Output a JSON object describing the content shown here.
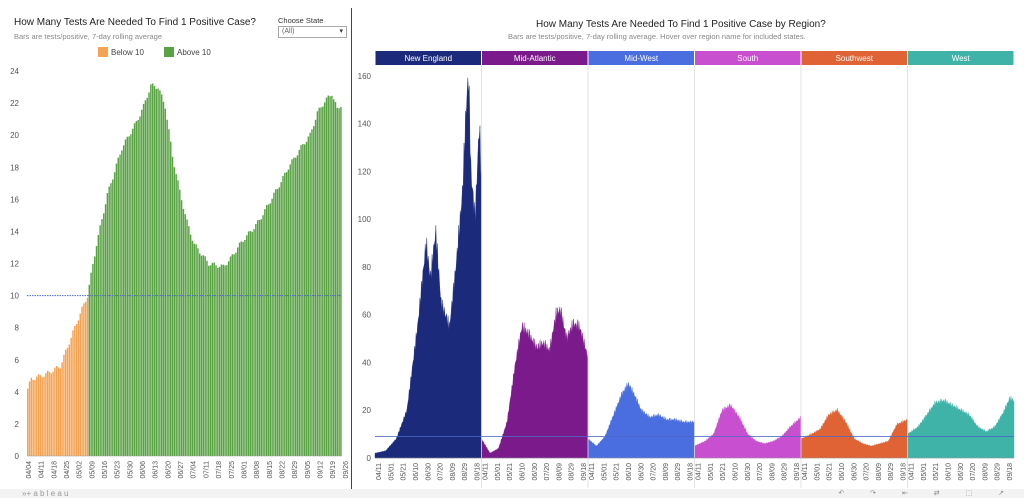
{
  "left": {
    "title": "How Many Tests Are Needed To Find 1 Positive Case?",
    "subtitle": "Bars are tests/positive, 7-day rolling average",
    "filter": {
      "label": "Choose State",
      "value": "(All)"
    },
    "legend": [
      {
        "label": "Below 10",
        "color": "#f4a352"
      },
      {
        "label": "Above 10",
        "color": "#5aa345"
      }
    ]
  },
  "right": {
    "title": "How Many Tests Are Needed To Find 1 Positive Case by Region?",
    "subtitle": "Bars are tests/positive, 7-day rolling average. Hover over region name for included states."
  },
  "footer": {
    "logo": "»+ a b l e a u",
    "icons": "↶ ↷ ⇤ ⇄ ⬚ ↗"
  },
  "chart_data": [
    {
      "type": "bar",
      "title": "How Many Tests Are Needed To Find 1 Positive Case?",
      "ylim": [
        0,
        24
      ],
      "yticks": [
        0,
        2,
        4,
        6,
        8,
        10,
        12,
        14,
        16,
        18,
        20,
        22,
        24
      ],
      "threshold": 10,
      "date_labels": [
        "04/04",
        "04/11",
        "04/18",
        "04/25",
        "05/02",
        "05/09",
        "05/16",
        "05/23",
        "05/30",
        "06/06",
        "06/13",
        "06/20",
        "06/27",
        "07/04",
        "07/11",
        "07/18",
        "07/25",
        "08/01",
        "08/08",
        "08/15",
        "08/22",
        "08/29",
        "09/05",
        "09/12",
        "09/19",
        "09/26"
      ],
      "keypoints": [
        [
          0,
          4.2
        ],
        [
          2,
          4.8
        ],
        [
          10,
          5.1
        ],
        [
          18,
          5.6
        ],
        [
          24,
          7.4
        ],
        [
          28,
          8.6
        ],
        [
          33,
          10.0
        ],
        [
          38,
          13.2
        ],
        [
          44,
          16.3
        ],
        [
          52,
          19.2
        ],
        [
          60,
          20.8
        ],
        [
          64,
          21.8
        ],
        [
          68,
          23.1
        ],
        [
          72,
          23.0
        ],
        [
          76,
          21.8
        ],
        [
          80,
          18.7
        ],
        [
          84,
          16.5
        ],
        [
          88,
          14.6
        ],
        [
          92,
          13.2
        ],
        [
          96,
          12.6
        ],
        [
          100,
          12.0
        ],
        [
          104,
          11.9
        ],
        [
          108,
          11.8
        ],
        [
          112,
          12.3
        ],
        [
          116,
          13.0
        ],
        [
          120,
          13.6
        ],
        [
          124,
          14.1
        ],
        [
          128,
          14.7
        ],
        [
          132,
          15.5
        ],
        [
          136,
          16.3
        ],
        [
          140,
          17.1
        ],
        [
          144,
          18.0
        ],
        [
          148,
          18.7
        ],
        [
          152,
          19.4
        ],
        [
          156,
          20.0
        ],
        [
          160,
          21.4
        ],
        [
          164,
          22.1
        ],
        [
          168,
          22.6
        ],
        [
          171,
          21.6
        ],
        [
          173,
          21.9
        ]
      ]
    },
    {
      "type": "area",
      "title": "How Many Tests Are Needed To Find 1 Positive Case by Region?",
      "ylim": [
        0,
        165
      ],
      "yticks": [
        0,
        20,
        40,
        60,
        80,
        100,
        120,
        140,
        160
      ],
      "reference_line": 9,
      "date_labels": [
        "04/11",
        "05/01",
        "05/21",
        "06/10",
        "06/30",
        "07/20",
        "08/09",
        "08/29",
        "09/18"
      ],
      "series": [
        {
          "name": "New England",
          "color": "#1b2a7b",
          "points": [
            [
              0,
              2
            ],
            [
              0.1,
              3
            ],
            [
              0.2,
              8
            ],
            [
              0.3,
              20
            ],
            [
              0.4,
              55
            ],
            [
              0.48,
              90
            ],
            [
              0.52,
              75
            ],
            [
              0.57,
              95
            ],
            [
              0.62,
              65
            ],
            [
              0.7,
              55
            ],
            [
              0.76,
              80
            ],
            [
              0.82,
              110
            ],
            [
              0.86,
              150
            ],
            [
              0.88,
              160
            ],
            [
              0.9,
              120
            ],
            [
              0.94,
              100
            ],
            [
              0.98,
              140
            ],
            [
              1,
              115
            ]
          ]
        },
        {
          "name": "Mid-Atlantic",
          "color": "#7b1a8b",
          "points": [
            [
              0,
              8
            ],
            [
              0.08,
              2
            ],
            [
              0.16,
              4
            ],
            [
              0.24,
              15
            ],
            [
              0.32,
              40
            ],
            [
              0.38,
              55
            ],
            [
              0.44,
              52
            ],
            [
              0.52,
              46
            ],
            [
              0.58,
              48
            ],
            [
              0.64,
              45
            ],
            [
              0.7,
              60
            ],
            [
              0.74,
              62
            ],
            [
              0.8,
              50
            ],
            [
              0.86,
              56
            ],
            [
              0.92,
              55
            ],
            [
              1,
              42
            ]
          ]
        },
        {
          "name": "Mid-West",
          "color": "#4a6ee0",
          "points": [
            [
              0,
              8
            ],
            [
              0.08,
              5
            ],
            [
              0.16,
              9
            ],
            [
              0.24,
              18
            ],
            [
              0.32,
              27
            ],
            [
              0.38,
              31
            ],
            [
              0.44,
              26
            ],
            [
              0.5,
              20
            ],
            [
              0.58,
              17
            ],
            [
              0.66,
              18
            ],
            [
              0.74,
              16
            ],
            [
              0.82,
              16
            ],
            [
              0.9,
              15
            ],
            [
              1,
              15
            ]
          ]
        },
        {
          "name": "South",
          "color": "#c94fd1",
          "points": [
            [
              0,
              5
            ],
            [
              0.1,
              7
            ],
            [
              0.18,
              10
            ],
            [
              0.26,
              20
            ],
            [
              0.34,
              22
            ],
            [
              0.42,
              17
            ],
            [
              0.5,
              10
            ],
            [
              0.58,
              7
            ],
            [
              0.66,
              6
            ],
            [
              0.74,
              7
            ],
            [
              0.82,
              9
            ],
            [
              0.9,
              13
            ],
            [
              1,
              17
            ]
          ]
        },
        {
          "name": "Southwest",
          "color": "#e06336",
          "points": [
            [
              0,
              8
            ],
            [
              0.1,
              10
            ],
            [
              0.18,
              12
            ],
            [
              0.26,
              18
            ],
            [
              0.34,
              20
            ],
            [
              0.42,
              15
            ],
            [
              0.5,
              8
            ],
            [
              0.58,
              6
            ],
            [
              0.66,
              5
            ],
            [
              0.74,
              6
            ],
            [
              0.82,
              7
            ],
            [
              0.9,
              14
            ],
            [
              1,
              16
            ]
          ]
        },
        {
          "name": "West",
          "color": "#3fb3a8",
          "points": [
            [
              0,
              10
            ],
            [
              0.1,
              13
            ],
            [
              0.18,
              18
            ],
            [
              0.26,
              23
            ],
            [
              0.34,
              24
            ],
            [
              0.42,
              22
            ],
            [
              0.5,
              20
            ],
            [
              0.58,
              18
            ],
            [
              0.66,
              13
            ],
            [
              0.74,
              11
            ],
            [
              0.82,
              13
            ],
            [
              0.9,
              19
            ],
            [
              0.96,
              25
            ],
            [
              1,
              24
            ]
          ]
        }
      ]
    }
  ]
}
